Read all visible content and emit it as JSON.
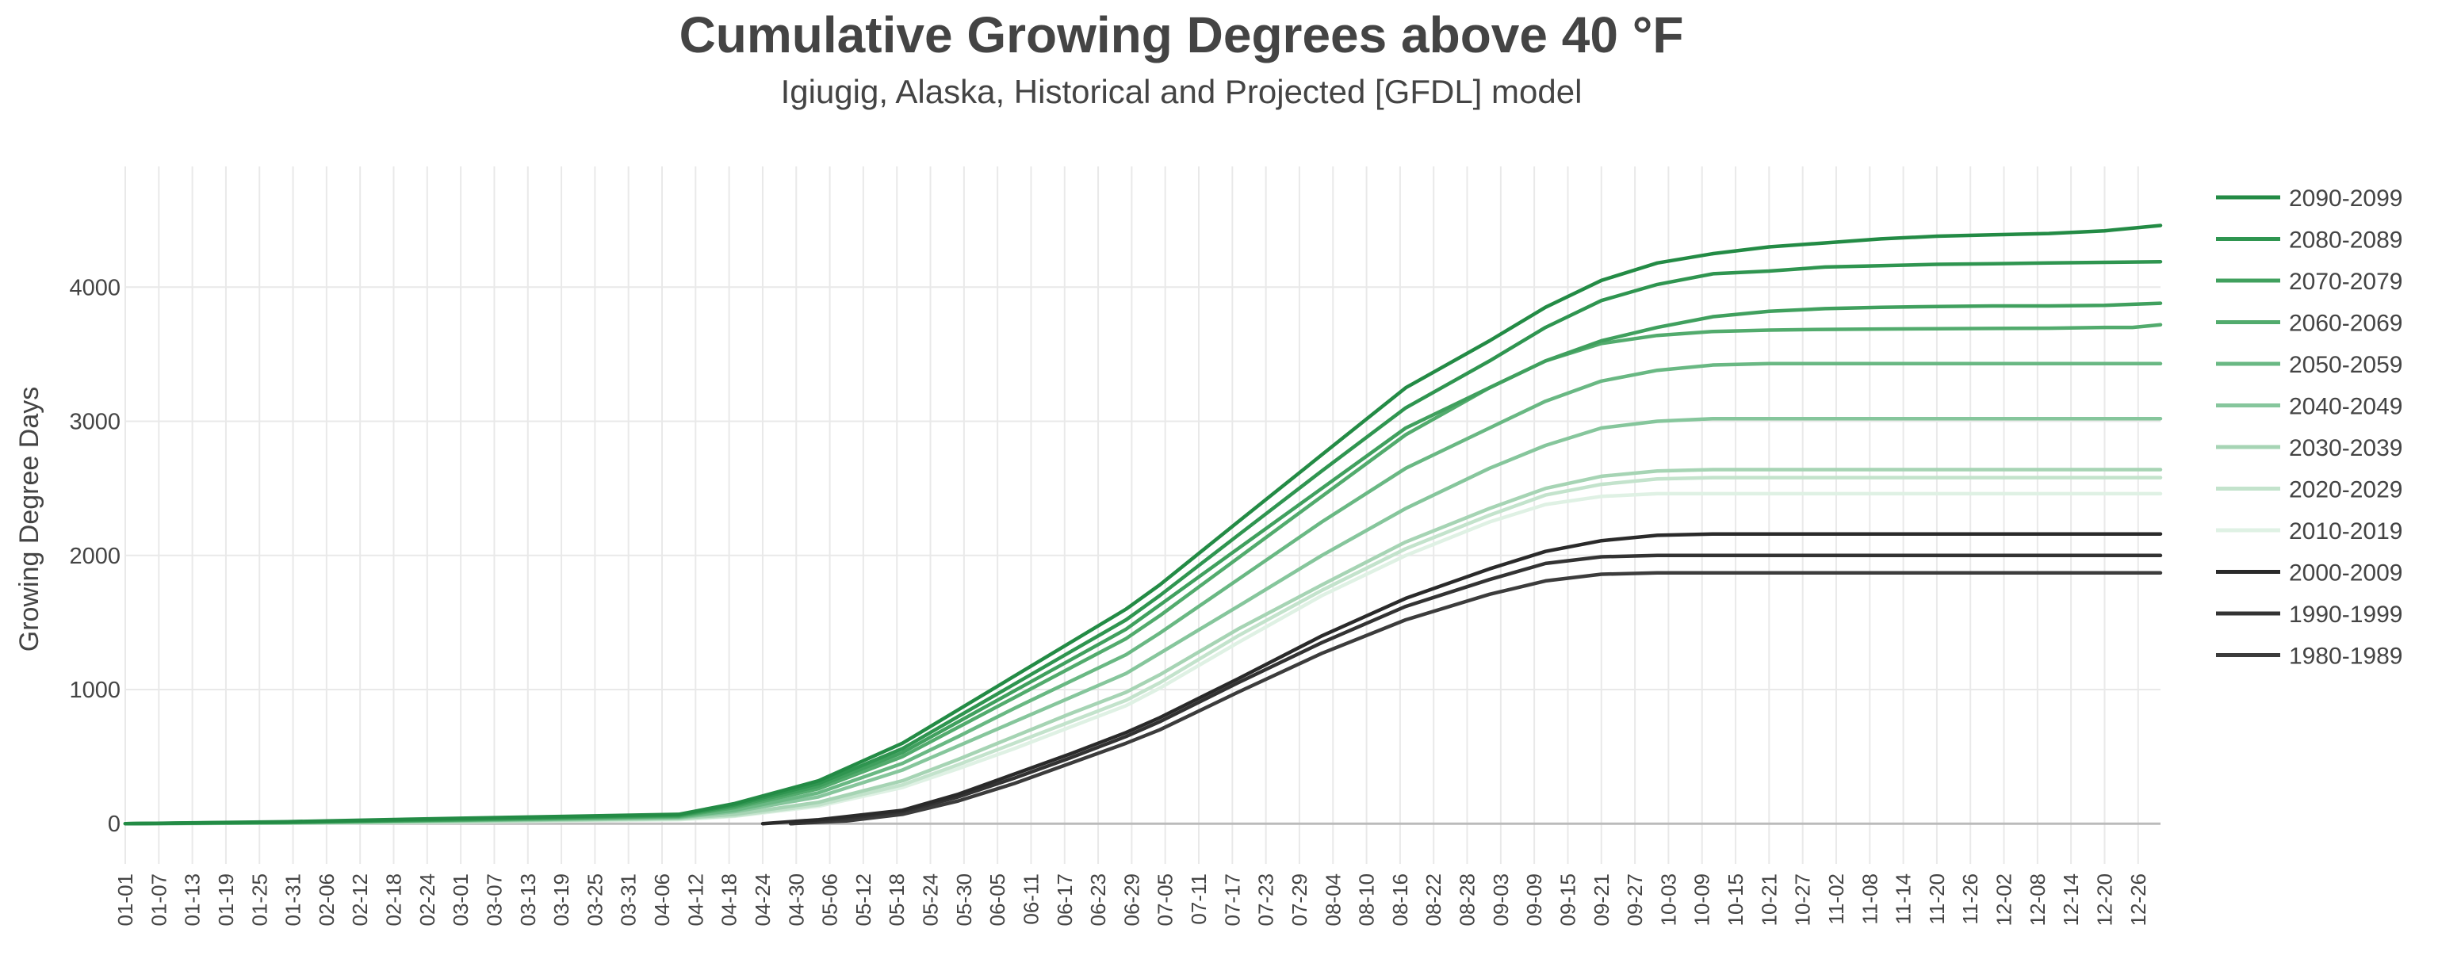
{
  "chart_data": {
    "type": "line",
    "title": "Cumulative Growing Degrees above 40 °F",
    "subtitle": "Igiugig, Alaska, Historical and Projected [GFDL] model",
    "xlabel": "",
    "ylabel": "Growing Degree Days",
    "ylim": [
      -300,
      4900
    ],
    "yticks": [
      0,
      1000,
      2000,
      3000,
      4000
    ],
    "grid": true,
    "legend_position": "right",
    "x_day_range": [
      1,
      365
    ],
    "tick_labels": [
      "01-01",
      "01-07",
      "01-13",
      "01-19",
      "01-25",
      "01-31",
      "02-06",
      "02-12",
      "02-18",
      "02-24",
      "03-01",
      "03-07",
      "03-13",
      "03-19",
      "03-25",
      "03-31",
      "04-06",
      "04-12",
      "04-18",
      "04-24",
      "04-30",
      "05-06",
      "05-12",
      "05-18",
      "05-24",
      "05-30",
      "06-05",
      "06-11",
      "06-17",
      "06-23",
      "06-29",
      "07-05",
      "07-11",
      "07-17",
      "07-23",
      "07-29",
      "08-04",
      "08-10",
      "08-16",
      "08-22",
      "08-28",
      "09-03",
      "09-09",
      "09-15",
      "09-21",
      "09-27",
      "10-03",
      "10-09",
      "10-15",
      "10-21",
      "10-27",
      "11-02",
      "11-08",
      "11-14",
      "11-20",
      "11-26",
      "12-02",
      "12-08",
      "12-14",
      "12-20",
      "12-26"
    ],
    "series": [
      {
        "name": "2090-2099",
        "color": "#238b45",
        "x": [
          1,
          30,
          60,
          100,
          110,
          125,
          140,
          150,
          160,
          170,
          180,
          186,
          200,
          215,
          230,
          245,
          255,
          265,
          275,
          285,
          295,
          305,
          315,
          325,
          335,
          345,
          355,
          365
        ],
        "values": [
          0,
          15,
          40,
          70,
          150,
          320,
          600,
          850,
          1100,
          1350,
          1600,
          1780,
          2250,
          2750,
          3250,
          3600,
          3850,
          4050,
          4180,
          4250,
          4300,
          4330,
          4360,
          4380,
          4390,
          4400,
          4420,
          4460
        ]
      },
      {
        "name": "2080-2089",
        "color": "#2f9550",
        "x": [
          1,
          30,
          60,
          100,
          110,
          125,
          140,
          150,
          160,
          170,
          180,
          186,
          200,
          215,
          230,
          245,
          255,
          265,
          275,
          285,
          295,
          305,
          315,
          325,
          335,
          345,
          355,
          365
        ],
        "values": [
          0,
          12,
          35,
          65,
          140,
          300,
          560,
          800,
          1040,
          1280,
          1520,
          1700,
          2150,
          2630,
          3100,
          3450,
          3700,
          3900,
          4020,
          4100,
          4120,
          4150,
          4160,
          4170,
          4175,
          4180,
          4185,
          4190
        ]
      },
      {
        "name": "2070-2079",
        "color": "#40a05e",
        "x": [
          1,
          30,
          60,
          100,
          110,
          125,
          140,
          150,
          160,
          170,
          180,
          186,
          200,
          215,
          230,
          245,
          255,
          265,
          275,
          285,
          295,
          305,
          315,
          325,
          335,
          345,
          355,
          365
        ],
        "values": [
          0,
          10,
          30,
          60,
          130,
          280,
          530,
          760,
          990,
          1220,
          1450,
          1630,
          2050,
          2500,
          2950,
          3250,
          3450,
          3600,
          3700,
          3780,
          3820,
          3840,
          3850,
          3855,
          3860,
          3860,
          3865,
          3880
        ]
      },
      {
        "name": "2060-2069",
        "color": "#52ab6d",
        "x": [
          1,
          30,
          60,
          100,
          110,
          125,
          140,
          150,
          160,
          170,
          180,
          186,
          200,
          215,
          230,
          245,
          255,
          265,
          275,
          285,
          295,
          305,
          315,
          325,
          335,
          345,
          355,
          360,
          365
        ],
        "values": [
          0,
          10,
          28,
          55,
          120,
          260,
          500,
          720,
          940,
          1160,
          1380,
          1550,
          1980,
          2440,
          2900,
          3250,
          3450,
          3580,
          3640,
          3670,
          3680,
          3685,
          3688,
          3690,
          3692,
          3694,
          3700,
          3700,
          3720
        ]
      },
      {
        "name": "2050-2059",
        "color": "#69b883",
        "x": [
          1,
          30,
          60,
          100,
          110,
          125,
          140,
          150,
          160,
          170,
          180,
          186,
          200,
          215,
          230,
          245,
          255,
          265,
          275,
          285,
          295,
          305,
          315,
          325,
          335,
          345,
          355,
          365
        ],
        "values": [
          0,
          8,
          25,
          50,
          100,
          230,
          450,
          650,
          860,
          1060,
          1260,
          1420,
          1820,
          2250,
          2650,
          2950,
          3150,
          3300,
          3380,
          3420,
          3430,
          3430,
          3430,
          3430,
          3430,
          3430,
          3430,
          3430
        ]
      },
      {
        "name": "2040-2049",
        "color": "#86c69c",
        "x": [
          1,
          30,
          60,
          100,
          110,
          125,
          140,
          150,
          160,
          170,
          180,
          186,
          200,
          215,
          230,
          245,
          255,
          265,
          275,
          285,
          295,
          305,
          315,
          325,
          335,
          345,
          355,
          365
        ],
        "values": [
          0,
          7,
          22,
          45,
          90,
          200,
          400,
          580,
          760,
          940,
          1120,
          1270,
          1620,
          2000,
          2350,
          2650,
          2820,
          2950,
          3000,
          3020,
          3020,
          3020,
          3020,
          3020,
          3020,
          3020,
          3020,
          3020
        ]
      },
      {
        "name": "2030-2039",
        "color": "#a6d4b4",
        "x": [
          1,
          30,
          60,
          100,
          110,
          125,
          140,
          150,
          160,
          170,
          180,
          186,
          200,
          215,
          230,
          245,
          255,
          265,
          275,
          285,
          295,
          305,
          315,
          325,
          335,
          345,
          355,
          365
        ],
        "values": [
          0,
          5,
          18,
          40,
          70,
          160,
          320,
          480,
          650,
          820,
          980,
          1110,
          1450,
          1780,
          2100,
          2350,
          2500,
          2590,
          2630,
          2640,
          2640,
          2640,
          2640,
          2640,
          2640,
          2640,
          2640,
          2640
        ]
      },
      {
        "name": "2020-2029",
        "color": "#c3e3cc",
        "x": [
          1,
          30,
          60,
          100,
          110,
          125,
          140,
          150,
          160,
          170,
          180,
          186,
          200,
          215,
          230,
          245,
          255,
          265,
          275,
          285,
          295,
          305,
          315,
          325,
          335,
          345,
          355,
          365
        ],
        "values": [
          0,
          5,
          15,
          35,
          60,
          140,
          290,
          440,
          600,
          760,
          920,
          1050,
          1400,
          1740,
          2050,
          2300,
          2450,
          2530,
          2570,
          2580,
          2580,
          2580,
          2580,
          2580,
          2580,
          2580,
          2580,
          2580
        ]
      },
      {
        "name": "2010-2019",
        "color": "#dff1e4",
        "x": [
          1,
          30,
          60,
          100,
          110,
          125,
          140,
          150,
          160,
          170,
          180,
          186,
          200,
          215,
          230,
          245,
          255,
          265,
          275,
          285,
          295,
          305,
          315,
          325,
          335,
          345,
          355,
          365
        ],
        "values": [
          0,
          4,
          12,
          30,
          55,
          130,
          270,
          410,
          560,
          720,
          880,
          1010,
          1350,
          1700,
          2000,
          2250,
          2380,
          2440,
          2460,
          2460,
          2460,
          2460,
          2460,
          2460,
          2460,
          2460,
          2460,
          2460
        ]
      },
      {
        "name": "2000-2009",
        "color": "#2a2a2a",
        "x": [
          115,
          125,
          140,
          150,
          160,
          170,
          180,
          186,
          200,
          215,
          230,
          245,
          255,
          265,
          275,
          285,
          295,
          305,
          315,
          325,
          335,
          345,
          355,
          365
        ],
        "values": [
          0,
          30,
          100,
          220,
          370,
          520,
          680,
          790,
          1080,
          1400,
          1680,
          1900,
          2030,
          2110,
          2150,
          2160,
          2160,
          2160,
          2160,
          2160,
          2160,
          2160,
          2160,
          2160
        ]
      },
      {
        "name": "1990-1999",
        "color": "#333333",
        "x": [
          120,
          130,
          140,
          150,
          160,
          170,
          180,
          186,
          200,
          215,
          230,
          245,
          255,
          265,
          275,
          285,
          295,
          305,
          315,
          325,
          335,
          345,
          355,
          365
        ],
        "values": [
          0,
          40,
          90,
          200,
          340,
          490,
          650,
          760,
          1050,
          1350,
          1620,
          1820,
          1940,
          1990,
          2000,
          2000,
          2000,
          2000,
          2000,
          2000,
          2000,
          2000,
          2000,
          2000
        ]
      },
      {
        "name": "1980-1989",
        "color": "#3c3c3c",
        "x": [
          120,
          130,
          140,
          150,
          160,
          170,
          180,
          186,
          200,
          215,
          230,
          245,
          255,
          265,
          275,
          285,
          295,
          305,
          315,
          325,
          335,
          345,
          355,
          365
        ],
        "values": [
          0,
          20,
          70,
          170,
          300,
          450,
          600,
          700,
          980,
          1270,
          1520,
          1710,
          1810,
          1860,
          1870,
          1870,
          1870,
          1870,
          1870,
          1870,
          1870,
          1870,
          1870,
          1870
        ]
      }
    ]
  }
}
